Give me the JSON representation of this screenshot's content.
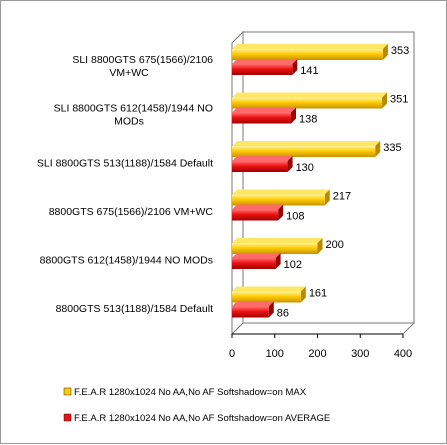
{
  "chart_data": {
    "type": "bar",
    "orientation": "horizontal",
    "categories": [
      [
        "SLI 8800GTS 675(1566)/2106",
        "VM+WC"
      ],
      [
        "SLI 8800GTS 612(1458)/1944 NO",
        "MODs"
      ],
      [
        "SLI 8800GTS 513(1188)/1584 Default"
      ],
      [
        "8800GTS 675(1566)/2106 VM+WC"
      ],
      [
        "8800GTS 612(1458)/1944 NO MODs"
      ],
      [
        "8800GTS 513(1188)/1584 Default"
      ]
    ],
    "series": [
      {
        "name": "F.E.A.R 1280x1024  No AA,No AF Softshadow=on  MAX",
        "values": [
          353,
          351,
          335,
          217,
          200,
          161
        ],
        "color": "#FFCC00"
      },
      {
        "name": "F.E.A.R 1280x1024 No AA,No AF Softshadow=on  AVERAGE",
        "values": [
          141,
          138,
          130,
          108,
          102,
          86
        ],
        "color": "#EE1111"
      }
    ],
    "xlim": [
      0,
      400
    ],
    "xticks": [
      0,
      100,
      200,
      300,
      400
    ],
    "grid": false,
    "legend_position": "bottom"
  }
}
